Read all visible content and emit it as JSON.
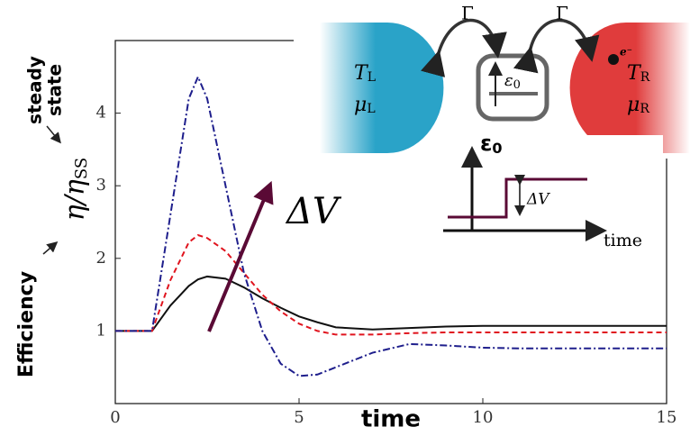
{
  "chart_data": {
    "type": "line",
    "x": [
      0,
      1,
      1.5,
      2,
      2.25,
      2.5,
      3,
      3.5,
      4,
      4.5,
      5,
      5.5,
      6,
      7,
      8,
      9,
      10,
      11,
      12,
      13,
      14,
      15
    ],
    "series": [
      {
        "color": "#111111",
        "dash": "solid",
        "values": [
          1,
          1,
          1.35,
          1.62,
          1.71,
          1.75,
          1.72,
          1.6,
          1.45,
          1.32,
          1.2,
          1.12,
          1.05,
          1.02,
          1.04,
          1.06,
          1.07,
          1.07,
          1.07,
          1.07,
          1.07,
          1.07
        ]
      },
      {
        "color": "#e0141e",
        "dash": "dashed",
        "values": [
          1,
          1,
          1.7,
          2.22,
          2.32,
          2.28,
          2.1,
          1.8,
          1.5,
          1.27,
          1.1,
          1.0,
          0.95,
          0.95,
          0.97,
          0.98,
          0.98,
          0.98,
          0.98,
          0.98,
          0.98,
          0.98
        ]
      },
      {
        "color": "#1e1e8c",
        "dash": "dashdot",
        "values": [
          1,
          1,
          2.6,
          4.2,
          4.5,
          4.2,
          3.0,
          1.8,
          1.0,
          0.55,
          0.38,
          0.4,
          0.5,
          0.7,
          0.82,
          0.8,
          0.77,
          0.76,
          0.76,
          0.76,
          0.76,
          0.76
        ]
      }
    ],
    "xlim": [
      0,
      15
    ],
    "ylim": [
      0,
      5
    ],
    "xticks": [
      0,
      5,
      10,
      15
    ],
    "yticks": [
      1,
      2,
      3,
      4
    ],
    "xlabel": "time",
    "ylabel": {
      "symbol": "η/η",
      "sub": "SS"
    },
    "annotations": {
      "efficiency": "Efficiency",
      "steady": "steady",
      "state": "state",
      "arrow_label": "ΔV"
    },
    "inset": {
      "gamma_left": "Γ",
      "gamma_right": "Γ",
      "left_temp": {
        "symbol": "T",
        "sub": "L"
      },
      "left_mu": {
        "symbol": "μ",
        "sub": "L"
      },
      "right_temp": {
        "symbol": "T",
        "sub": "R"
      },
      "right_mu": {
        "symbol": "μ",
        "sub": "R"
      },
      "dot_level": {
        "symbol": "ε",
        "sub": "0"
      },
      "electron": "e⁻",
      "level_axis": {
        "symbol": "ε",
        "sub": "0"
      },
      "step_label": "ΔV",
      "time_axis": "time"
    }
  }
}
